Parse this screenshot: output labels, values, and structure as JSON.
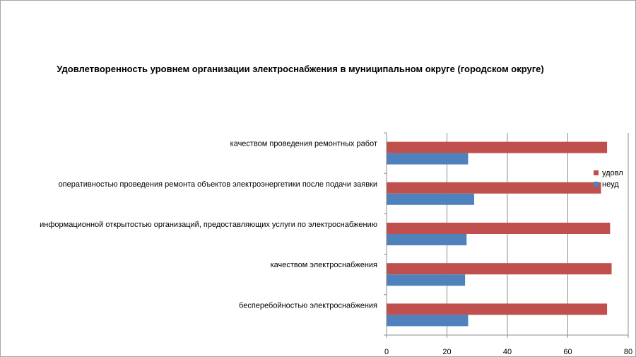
{
  "chart_data": {
    "type": "bar",
    "orientation": "horizontal",
    "title": "Удовлетворенность уровнем организации электроснабжения в муниципальном округе (городском округе)",
    "categories": [
      "качеством проведения ремонтных работ",
      "оперативностью проведения ремонта объектов электроэнергетики после подачи заявки",
      "информационной открытостью организаций, предоставляющих услуги по электроснабжению",
      "качеством электроснабжения",
      "бесперебойностью электроснабжения"
    ],
    "series": [
      {
        "name": "удовл",
        "color": "#c0504d",
        "values": [
          73,
          71,
          74,
          74.5,
          73
        ]
      },
      {
        "name": "неуд",
        "color": "#4f81bd",
        "values": [
          27,
          29,
          26.5,
          26,
          27
        ]
      }
    ],
    "xlim": [
      0,
      80
    ],
    "xticks": [
      "0",
      "20",
      "40",
      "60",
      "80"
    ],
    "grid": true,
    "legend_position": "right"
  }
}
